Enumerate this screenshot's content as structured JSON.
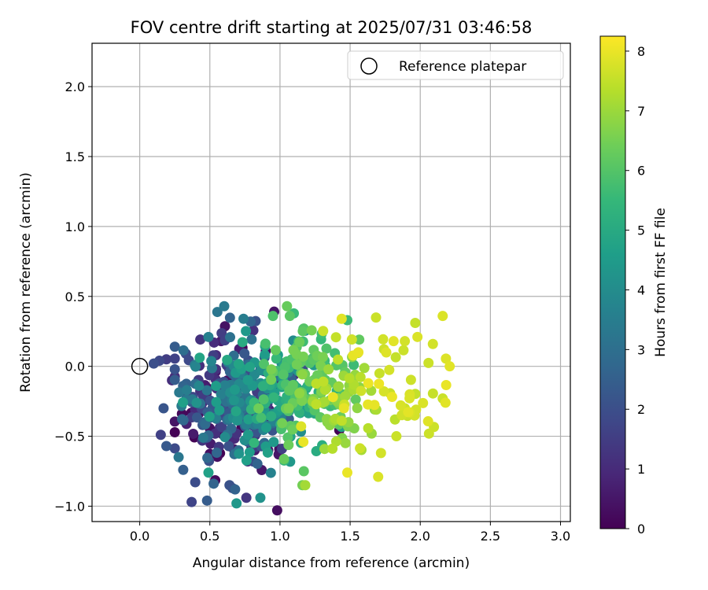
{
  "chart_data": {
    "type": "scatter",
    "title": "FOV centre drift starting at 2025/07/31 03:46:58",
    "xlabel": "Angular distance from reference (arcmin)",
    "ylabel": "Rotation from reference (arcmin)",
    "xlim": [
      -0.34,
      3.07
    ],
    "ylim": [
      -1.11,
      2.31
    ],
    "xticks": [
      0.0,
      0.5,
      1.0,
      1.5,
      2.0,
      2.5,
      3.0
    ],
    "xtick_labels": [
      "0.0",
      "0.5",
      "1.0",
      "1.5",
      "2.0",
      "2.5",
      "3.0"
    ],
    "yticks": [
      -1.0,
      -0.5,
      0.0,
      0.5,
      1.0,
      1.5,
      2.0
    ],
    "ytick_labels": [
      "−1.0",
      "−0.5",
      "0.0",
      "0.5",
      "1.0",
      "1.5",
      "2.0"
    ],
    "grid": true,
    "legend": {
      "position": "top-right",
      "label": "Reference platepar",
      "marker": "open-circle"
    },
    "reference_point": {
      "x": 0.0,
      "y": 0.0
    },
    "colorbar": {
      "label": "Hours from first FF file",
      "colormap": "viridis",
      "min": 0,
      "max": 8.25,
      "ticks": [
        0,
        1,
        2,
        3,
        4,
        5,
        6,
        7,
        8
      ],
      "tick_labels": [
        "0",
        "1",
        "2",
        "3",
        "4",
        "5",
        "6",
        "7",
        "8"
      ]
    },
    "point_count": 600,
    "visible_points": [
      {
        "x": 0.1,
        "y": 0.02,
        "hours": 2.0
      },
      {
        "x": 0.14,
        "y": 0.04,
        "hours": 1.8
      },
      {
        "x": 0.19,
        "y": 0.05,
        "hours": 1.5
      },
      {
        "x": 0.25,
        "y": 0.14,
        "hours": 2.4
      },
      {
        "x": 0.23,
        "y": -0.1,
        "hours": 1.1
      },
      {
        "x": 0.17,
        "y": -0.3,
        "hours": 2.2
      },
      {
        "x": 0.15,
        "y": -0.49,
        "hours": 1.6
      },
      {
        "x": 0.19,
        "y": -0.57,
        "hours": 2.3
      },
      {
        "x": 0.31,
        "y": -0.74,
        "hours": 2.5
      },
      {
        "x": 0.37,
        "y": -0.97,
        "hours": 1.7
      },
      {
        "x": 0.48,
        "y": -0.96,
        "hours": 2.4
      },
      {
        "x": 0.49,
        "y": -0.76,
        "hours": 4.7
      },
      {
        "x": 0.64,
        "y": -0.85,
        "hours": 2.1
      },
      {
        "x": 0.68,
        "y": -0.88,
        "hours": 2.6
      },
      {
        "x": 0.69,
        "y": -0.98,
        "hours": 4.4
      },
      {
        "x": 0.76,
        "y": -0.94,
        "hours": 1.3
      },
      {
        "x": 0.86,
        "y": -0.94,
        "hours": 4.2
      },
      {
        "x": 0.98,
        "y": -1.03,
        "hours": 0.3
      },
      {
        "x": 0.77,
        "y": -0.68,
        "hours": 0.8
      },
      {
        "x": 0.99,
        "y": -0.63,
        "hours": 0.5
      },
      {
        "x": 0.49,
        "y": 0.21,
        "hours": 3.6
      },
      {
        "x": 0.53,
        "y": 0.17,
        "hours": 1.0
      },
      {
        "x": 0.58,
        "y": 0.18,
        "hours": 0.6
      },
      {
        "x": 0.74,
        "y": 0.34,
        "hours": 3.5
      },
      {
        "x": 0.79,
        "y": 0.32,
        "hours": 2.7
      },
      {
        "x": 0.95,
        "y": 0.36,
        "hours": 5.9
      },
      {
        "x": 1.05,
        "y": 0.43,
        "hours": 6.3
      },
      {
        "x": 1.07,
        "y": 0.36,
        "hours": 6.1
      },
      {
        "x": 1.17,
        "y": 0.27,
        "hours": 6.0
      },
      {
        "x": 1.44,
        "y": 0.34,
        "hours": 7.9
      },
      {
        "x": 1.48,
        "y": 0.33,
        "hours": 5.6
      },
      {
        "x": 1.81,
        "y": 0.18,
        "hours": 7.9
      },
      {
        "x": 1.89,
        "y": 0.18,
        "hours": 7.7
      },
      {
        "x": 1.98,
        "y": 0.21,
        "hours": 7.8
      },
      {
        "x": 2.09,
        "y": 0.16,
        "hours": 7.7
      },
      {
        "x": 2.16,
        "y": 0.36,
        "hours": 7.8
      },
      {
        "x": 2.21,
        "y": 0.0,
        "hours": 7.9
      },
      {
        "x": 2.16,
        "y": -0.23,
        "hours": 7.6
      },
      {
        "x": 2.18,
        "y": -0.26,
        "hours": 7.9
      },
      {
        "x": 1.97,
        "y": -0.31,
        "hours": 7.7
      },
      {
        "x": 1.89,
        "y": -0.3,
        "hours": 7.6
      },
      {
        "x": 1.82,
        "y": -0.38,
        "hours": 7.4
      },
      {
        "x": 1.83,
        "y": -0.5,
        "hours": 7.6
      },
      {
        "x": 1.72,
        "y": -0.62,
        "hours": 7.7
      },
      {
        "x": 1.7,
        "y": -0.79,
        "hours": 7.8
      },
      {
        "x": 1.48,
        "y": -0.76,
        "hours": 8.0
      },
      {
        "x": 1.16,
        "y": -0.85,
        "hours": 6.5
      },
      {
        "x": 1.18,
        "y": -0.85,
        "hours": 7.1
      },
      {
        "x": 1.17,
        "y": -0.75,
        "hours": 6.1
      }
    ]
  }
}
